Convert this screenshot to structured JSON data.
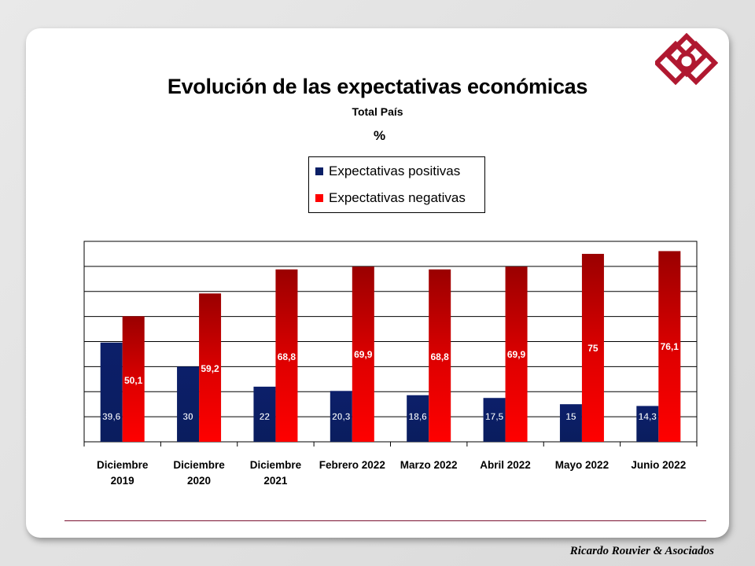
{
  "footer": {
    "brand": "Ricardo Rouvier & Asociados"
  },
  "colors": {
    "positive": "#0a1f66",
    "negative": "#ff0000",
    "negative_dark": "#a00000",
    "accent": "#b01830"
  },
  "chart_data": {
    "type": "bar",
    "title": "Evolución de las expectativas económicas",
    "subtitle": "Total País",
    "unit": "%",
    "categories": [
      [
        "Diciembre",
        "2019"
      ],
      [
        "Diciembre",
        "2020"
      ],
      [
        "Diciembre",
        "2021"
      ],
      [
        "Febrero 2022"
      ],
      [
        "Marzo 2022"
      ],
      [
        "Abril 2022"
      ],
      [
        "Mayo 2022"
      ],
      [
        "Junio 2022"
      ]
    ],
    "series": [
      {
        "name": "Expectativas positivas",
        "values": [
          39.6,
          30,
          22,
          20.3,
          18.6,
          17.5,
          15,
          14.3
        ],
        "labels": [
          "39,6",
          "30",
          "22",
          "20,3",
          "18,6",
          "17,5",
          "15",
          "14,3"
        ]
      },
      {
        "name": "Expectativas negativas",
        "values": [
          50.1,
          59.2,
          68.8,
          69.9,
          68.8,
          69.9,
          75,
          76.1
        ],
        "labels": [
          "50,1",
          "59,2",
          "68,8",
          "69,9",
          "68,8",
          "69,9",
          "75",
          "76,1"
        ]
      }
    ],
    "ylim": [
      0,
      80
    ],
    "grid": true,
    "legend": "top-center"
  }
}
